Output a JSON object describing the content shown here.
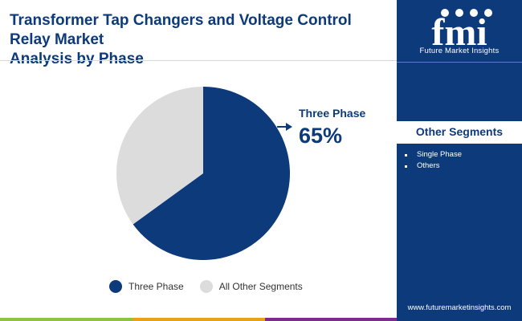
{
  "title": {
    "line1": "Transformer Tap Changers and Voltage Control Relay Market",
    "line2": "Analysis by Phase"
  },
  "colors": {
    "primary": "#0d3a7a",
    "secondary": "#dcdcdc",
    "sidebar": "#0d3a7a"
  },
  "chart_data": {
    "type": "pie",
    "categories": [
      "Three Phase",
      "All Other Segments"
    ],
    "values": [
      65,
      35
    ],
    "unit": "%",
    "legend_position": "bottom",
    "annotation": {
      "label": "Three Phase",
      "value": "65%"
    }
  },
  "legend": [
    {
      "label": "Three Phase",
      "color": "#0d3a7a"
    },
    {
      "label": "All Other Segments",
      "color": "#dcdcdc"
    }
  ],
  "sidebar": {
    "logo_letters": "fmi",
    "logo_text": "Future Market Insights",
    "segments_title": "Other Segments",
    "segments": [
      "Single Phase",
      "Others"
    ],
    "url": "www.futuremarketinsights.com"
  }
}
